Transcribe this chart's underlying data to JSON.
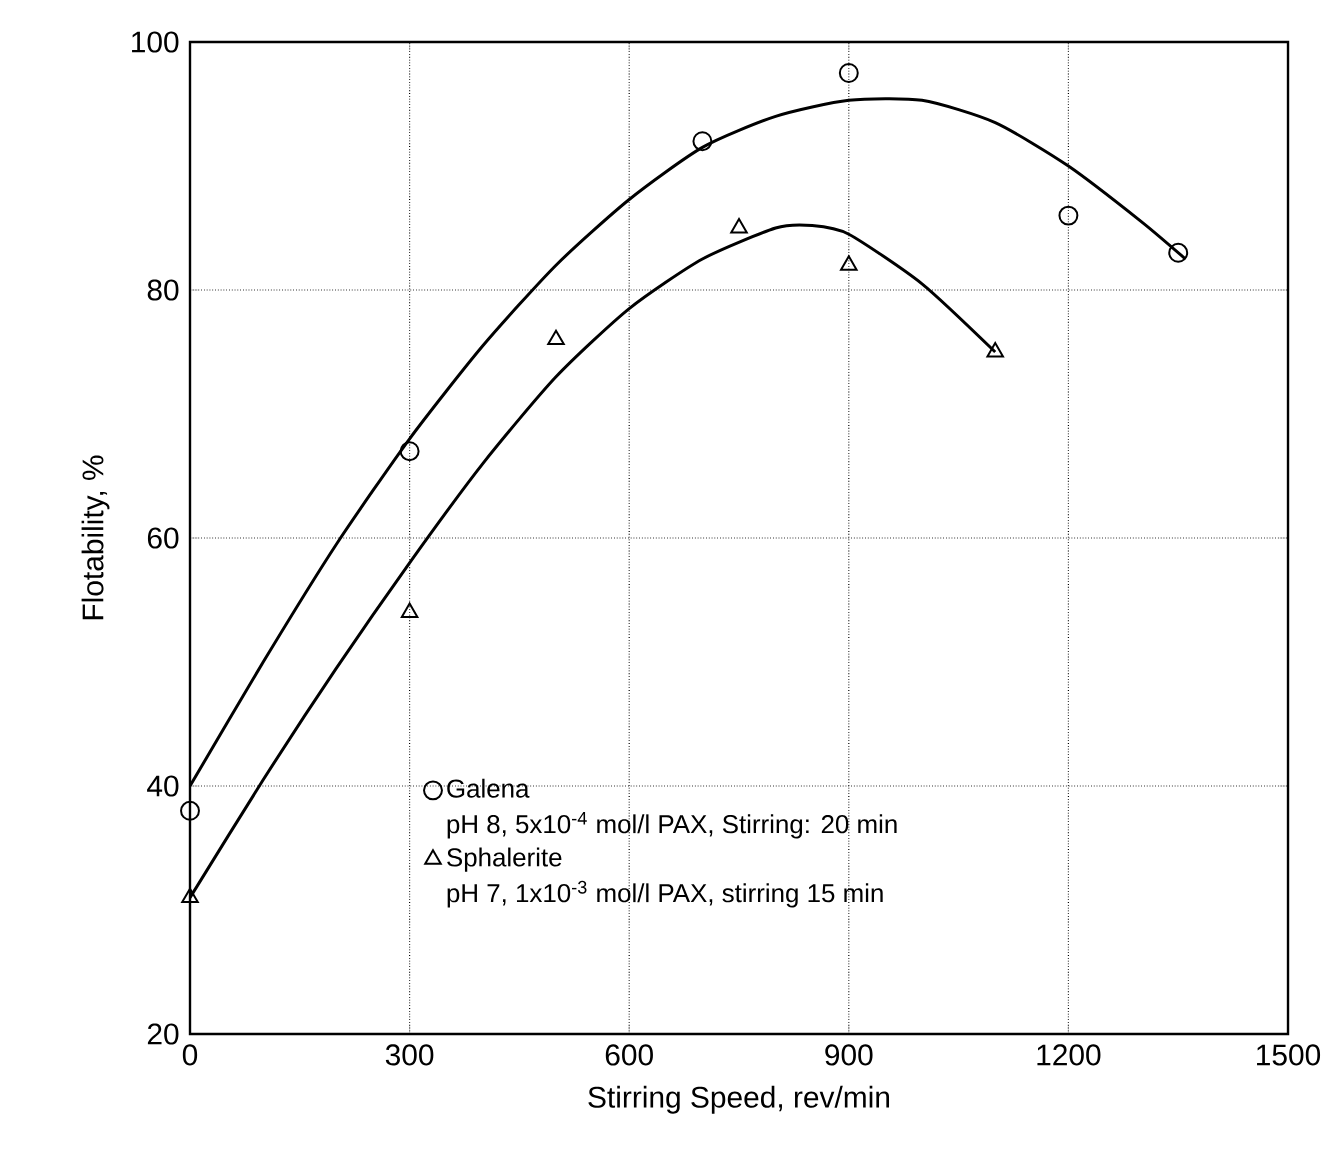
{
  "chart_data": {
    "type": "scatter",
    "xlabel": "Stirring Speed, rev/min",
    "ylabel": "Flotability, %",
    "xlim": [
      0,
      1500
    ],
    "xticks": [
      0,
      300,
      600,
      900,
      1200,
      1500
    ],
    "ylim": [
      20,
      100
    ],
    "yticks": [
      20,
      40,
      60,
      80,
      100
    ],
    "grid": true,
    "legend": "bottom",
    "annotations": [
      "pH 8, 5x10$^{-4}$ mol/l PAX, Stirring: 20 min",
      "pH 7, 1x10$^{-3}$ mol/l PAX, stirring 15 min"
    ],
    "series": [
      {
        "name": "Galena",
        "marker": "circle",
        "color": "#000000",
        "x": [
          0,
          300,
          700,
          900,
          1200,
          1350
        ],
        "values": [
          38,
          67,
          92,
          97.5,
          86,
          83
        ]
      },
      {
        "name": "Sphalerite",
        "marker": "triangle",
        "color": "#000000",
        "x": [
          0,
          300,
          500,
          750,
          900,
          1100
        ],
        "values": [
          31,
          54,
          76,
          85,
          82,
          75
        ]
      },
      {
        "type": "line",
        "marker": "none",
        "line_style": "solid",
        "color": "#000000",
        "x": [
          0,
          100,
          200,
          300,
          400,
          500,
          600,
          700,
          800,
          900,
          1000,
          1100,
          1200,
          1300,
          1360
        ],
        "values": [
          40,
          50,
          59.5,
          68,
          75.5,
          82,
          87.3,
          91.5,
          94,
          95.3,
          95.3,
          93.5,
          90,
          85.5,
          82.5
        ]
      },
      {
        "type": "line",
        "marker": "none",
        "line_style": "solid",
        "color": "#000000",
        "x": [
          0,
          100,
          200,
          300,
          400,
          500,
          600,
          700,
          800,
          850,
          900,
          1000,
          1100
        ],
        "values": [
          31,
          40.5,
          49.5,
          58,
          66,
          73,
          78.5,
          82.5,
          85,
          85.2,
          84.5,
          80.5,
          75
        ]
      }
    ]
  }
}
